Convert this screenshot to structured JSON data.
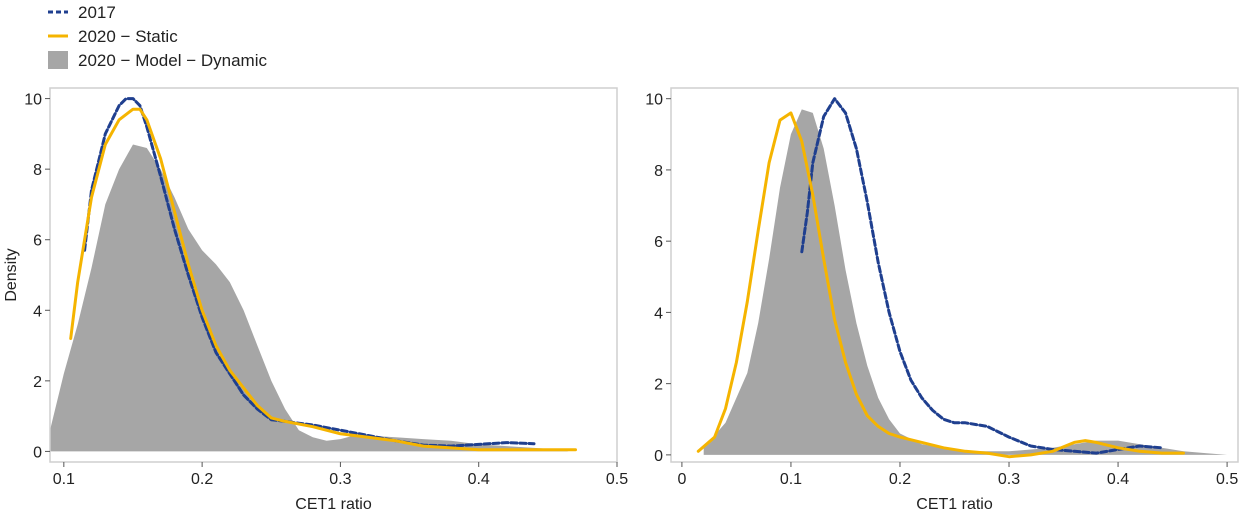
{
  "legend": {
    "items": [
      {
        "label": "2017",
        "style": "dashed",
        "color": "#1f3f8f"
      },
      {
        "label": "2020 − Static",
        "style": "solid",
        "color": "#f5b400"
      },
      {
        "label": "2020 − Model − Dynamic",
        "style": "area",
        "color": "#a6a6a6"
      }
    ]
  },
  "chart_data": [
    {
      "type": "area",
      "xlabel": "CET1 ratio",
      "ylabel": "Density",
      "xlim": [
        0.09,
        0.5
      ],
      "ylim": [
        -0.3,
        10.3
      ],
      "xticks": [
        0.1,
        0.2,
        0.3,
        0.4,
        0.5
      ],
      "xtick_labels": [
        "0.1",
        "0.2",
        "0.3",
        "0.4",
        "0.5"
      ],
      "yticks": [
        0,
        2,
        4,
        6,
        8,
        10
      ],
      "ytick_labels": [
        "0",
        "2",
        "4",
        "6",
        "8",
        "10"
      ],
      "grid": false,
      "series": [
        {
          "name": "2020 − Model − Dynamic",
          "style": "area",
          "color": "#a6a6a6",
          "x": [
            0.09,
            0.1,
            0.11,
            0.12,
            0.13,
            0.14,
            0.15,
            0.16,
            0.17,
            0.18,
            0.19,
            0.2,
            0.21,
            0.22,
            0.23,
            0.24,
            0.25,
            0.26,
            0.27,
            0.28,
            0.29,
            0.3,
            0.31,
            0.32,
            0.34,
            0.36,
            0.38,
            0.4,
            0.42,
            0.44,
            0.46,
            0.465
          ],
          "y": [
            0.6,
            2.2,
            3.6,
            5.2,
            7.0,
            8.0,
            8.7,
            8.6,
            8.0,
            7.2,
            6.3,
            5.7,
            5.3,
            4.8,
            4.0,
            3.0,
            2.0,
            1.2,
            0.6,
            0.4,
            0.3,
            0.35,
            0.45,
            0.45,
            0.4,
            0.35,
            0.3,
            0.2,
            0.15,
            0.1,
            0.05,
            0.0
          ]
        },
        {
          "name": "2017",
          "style": "dashed",
          "color": "#1f3f8f",
          "x": [
            0.115,
            0.12,
            0.13,
            0.14,
            0.145,
            0.15,
            0.155,
            0.16,
            0.17,
            0.18,
            0.19,
            0.2,
            0.21,
            0.22,
            0.23,
            0.24,
            0.25,
            0.26,
            0.27,
            0.28,
            0.3,
            0.32,
            0.34,
            0.36,
            0.38,
            0.4,
            0.42,
            0.44
          ],
          "y": [
            5.7,
            7.4,
            9.0,
            9.8,
            10.0,
            10.0,
            9.8,
            9.2,
            7.8,
            6.3,
            5.0,
            3.8,
            2.8,
            2.2,
            1.6,
            1.2,
            0.9,
            0.85,
            0.8,
            0.75,
            0.6,
            0.45,
            0.3,
            0.18,
            0.15,
            0.2,
            0.25,
            0.22
          ]
        },
        {
          "name": "2020 − Static",
          "style": "solid",
          "color": "#f5b400",
          "x": [
            0.105,
            0.11,
            0.12,
            0.13,
            0.14,
            0.15,
            0.155,
            0.16,
            0.17,
            0.18,
            0.19,
            0.2,
            0.21,
            0.22,
            0.23,
            0.24,
            0.25,
            0.26,
            0.28,
            0.3,
            0.32,
            0.34,
            0.36,
            0.38,
            0.4,
            0.42,
            0.44,
            0.46,
            0.47
          ],
          "y": [
            3.2,
            4.8,
            7.2,
            8.7,
            9.4,
            9.7,
            9.7,
            9.4,
            8.3,
            6.8,
            5.3,
            4.0,
            3.0,
            2.3,
            1.8,
            1.3,
            0.95,
            0.85,
            0.7,
            0.5,
            0.4,
            0.3,
            0.15,
            0.1,
            0.05,
            0.05,
            0.05,
            0.05,
            0.05
          ]
        }
      ]
    },
    {
      "type": "area",
      "xlabel": "CET1 ratio",
      "ylabel": "",
      "xlim": [
        -0.01,
        0.51
      ],
      "ylim": [
        -0.2,
        10.3
      ],
      "xticks": [
        0,
        0.1,
        0.2,
        0.3,
        0.4,
        0.5
      ],
      "xtick_labels": [
        "0",
        "0.1",
        "0.2",
        "0.3",
        "0.4",
        "0.5"
      ],
      "yticks": [
        0,
        2,
        4,
        6,
        8,
        10
      ],
      "ytick_labels": [
        "0",
        "2",
        "4",
        "6",
        "8",
        "10"
      ],
      "grid": false,
      "series": [
        {
          "name": "2020 − Model − Dynamic",
          "style": "area",
          "color": "#a6a6a6",
          "x": [
            0.02,
            0.04,
            0.06,
            0.07,
            0.08,
            0.09,
            0.1,
            0.11,
            0.12,
            0.13,
            0.14,
            0.15,
            0.16,
            0.17,
            0.18,
            0.19,
            0.2,
            0.22,
            0.24,
            0.26,
            0.28,
            0.3,
            0.32,
            0.34,
            0.36,
            0.38,
            0.4,
            0.42,
            0.44,
            0.46,
            0.48,
            0.5
          ],
          "y": [
            0.2,
            0.9,
            2.3,
            3.7,
            5.5,
            7.5,
            9.0,
            9.7,
            9.6,
            8.6,
            7.0,
            5.2,
            3.7,
            2.5,
            1.6,
            1.0,
            0.6,
            0.3,
            0.2,
            0.1,
            0.1,
            0.1,
            0.15,
            0.2,
            0.3,
            0.4,
            0.4,
            0.3,
            0.2,
            0.1,
            0.05,
            0.0
          ]
        },
        {
          "name": "2017",
          "style": "dashed",
          "color": "#1f3f8f",
          "x": [
            0.11,
            0.115,
            0.12,
            0.13,
            0.14,
            0.15,
            0.16,
            0.17,
            0.18,
            0.19,
            0.2,
            0.21,
            0.22,
            0.23,
            0.24,
            0.25,
            0.26,
            0.27,
            0.28,
            0.3,
            0.32,
            0.34,
            0.36,
            0.38,
            0.4,
            0.42,
            0.44
          ],
          "y": [
            5.7,
            6.8,
            8.2,
            9.5,
            10.0,
            9.6,
            8.6,
            7.1,
            5.4,
            4.0,
            2.9,
            2.1,
            1.6,
            1.25,
            1.0,
            0.9,
            0.9,
            0.85,
            0.8,
            0.5,
            0.25,
            0.15,
            0.1,
            0.05,
            0.15,
            0.25,
            0.2
          ]
        },
        {
          "name": "2020 − Static",
          "style": "solid",
          "color": "#f5b400",
          "x": [
            0.015,
            0.03,
            0.04,
            0.05,
            0.06,
            0.07,
            0.08,
            0.09,
            0.1,
            0.11,
            0.12,
            0.13,
            0.14,
            0.15,
            0.16,
            0.17,
            0.18,
            0.19,
            0.2,
            0.22,
            0.24,
            0.26,
            0.28,
            0.3,
            0.32,
            0.34,
            0.36,
            0.37,
            0.38,
            0.4,
            0.42,
            0.44,
            0.46
          ],
          "y": [
            0.1,
            0.5,
            1.3,
            2.6,
            4.3,
            6.3,
            8.2,
            9.4,
            9.6,
            8.8,
            7.3,
            5.5,
            3.8,
            2.6,
            1.7,
            1.1,
            0.8,
            0.6,
            0.5,
            0.35,
            0.2,
            0.1,
            0.05,
            -0.05,
            0.0,
            0.1,
            0.35,
            0.4,
            0.35,
            0.2,
            0.1,
            0.05,
            0.05
          ]
        }
      ]
    }
  ]
}
